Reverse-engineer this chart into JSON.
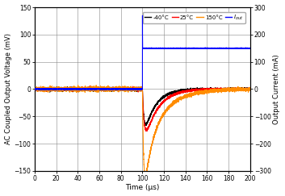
{
  "title": "",
  "xlabel": "Time (μs)",
  "ylabel_left": "AC Coupled Output Voltage (mV)",
  "ylabel_right": "Output Current (mA)",
  "xlim": [
    0,
    200
  ],
  "ylim_left": [
    -150,
    150
  ],
  "ylim_right": [
    -300,
    300
  ],
  "yticks_left": [
    -150,
    -100,
    -50,
    0,
    50,
    100,
    150
  ],
  "yticks_right": [
    -300,
    -200,
    -100,
    0,
    100,
    200,
    300
  ],
  "xticks": [
    0,
    20,
    40,
    60,
    80,
    100,
    120,
    140,
    160,
    180,
    200
  ],
  "legend_labels": [
    "-40°C",
    "25°C",
    "150°C",
    "I_out"
  ],
  "legend_colors": [
    "#000000",
    "#ff0000",
    "#ff8c00",
    "#0000ff"
  ],
  "bg_color": "#ffffff",
  "t_step": 100.0,
  "i_out_level": 150.0,
  "neg40_min": -65.0,
  "neg40_rise_tau": 1.5,
  "neg40_decay_tau": 10.0,
  "c25_min": -75.0,
  "c25_rise_tau": 1.8,
  "c25_decay_tau": 12.0,
  "c150_min1": -130.0,
  "c150_rise_tau1": 1.2,
  "c150_decay_tau1": 6.0,
  "c150_min2": -50.0,
  "c150_rise_tau2": 8.0,
  "c150_decay_tau2": 18.0,
  "noise_pre": 1.5,
  "noise_post": 1.0,
  "noise_150_pre": 2.0,
  "noise_150_post": 1.5
}
